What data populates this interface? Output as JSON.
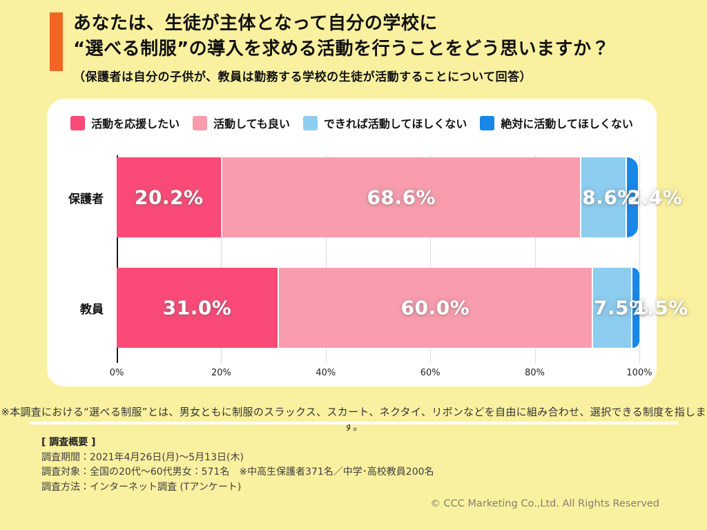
{
  "page": {
    "background_color": "#FAF1A0",
    "accent_color": "#F26522",
    "card_color": "#FFFFFF"
  },
  "header": {
    "title_line1": "あなたは、生徒が主体となって自分の学校に",
    "title_line2": "“選べる制服”の導入を求める活動を行うことをどう思いますか？",
    "subtitle": "（保護者は自分の子供が、教員は勤務する学校の生徒が活動することについて回答）"
  },
  "chart_data": {
    "type": "bar",
    "orientation": "horizontal",
    "stacked": true,
    "categories": [
      "保護者",
      "教員"
    ],
    "series": [
      {
        "name": "活動を応援したい",
        "color": "#FA4A78",
        "values": [
          20.2,
          31.0
        ]
      },
      {
        "name": "活動しても良い",
        "color": "#F99DAE",
        "values": [
          68.6,
          60.0
        ]
      },
      {
        "name": "できれば活動してほしくない",
        "color": "#8DCDF0",
        "values": [
          8.6,
          7.5
        ]
      },
      {
        "name": "絶対に活動してほしくない",
        "color": "#1787E8",
        "values": [
          2.4,
          1.5
        ]
      }
    ],
    "value_labels": [
      [
        "20.2%",
        "68.6%",
        "8.6%",
        "2.4%"
      ],
      [
        "31.0%",
        "60.0%",
        "7.5%",
        "1.5%"
      ]
    ],
    "x_ticks": [
      "0%",
      "20%",
      "40%",
      "60%",
      "80%",
      "100%"
    ],
    "xlim": [
      0,
      100
    ],
    "grid": true,
    "legend_position": "top"
  },
  "footnote": "※本調査における“選べる制服”とは、男女ともに制服のスラックス、スカート、ネクタイ、リボンなどを自由に組み合わせ、選択できる制度を指します。",
  "survey": {
    "heading": "[ 調査概要 ]",
    "lines": [
      "調査期間：2021年4月26日(月)〜5月13日(木)",
      "調査対象：全国の20代〜60代男女：571名　※中高生保護者371名／中学･高校教員200名",
      "調査方法：インターネット調査 (Tアンケート)"
    ]
  },
  "copyright": "© CCC Marketing Co.,Ltd. All Rights Reserved"
}
